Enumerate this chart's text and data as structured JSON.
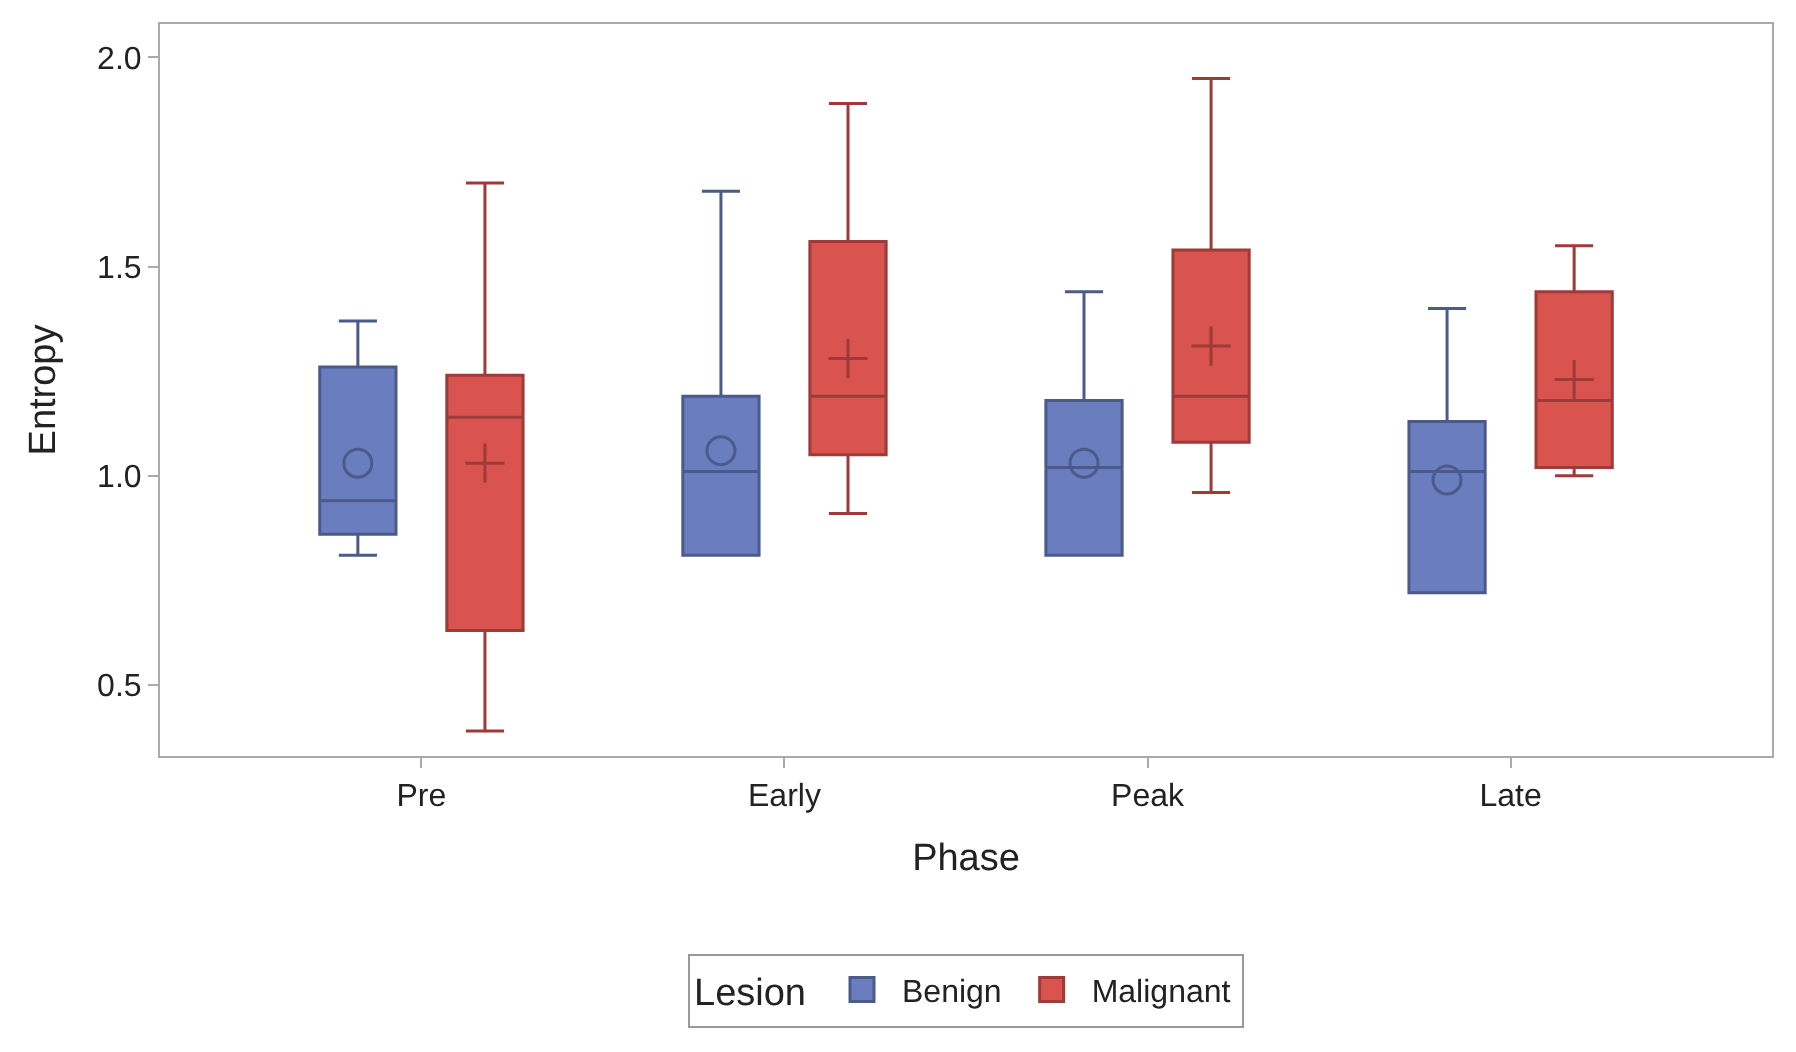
{
  "chart_data": {
    "type": "box",
    "xlabel": "Phase",
    "ylabel": "Entropy",
    "legend_title": "Lesion",
    "legend": "bottom",
    "categories": [
      "Pre",
      "Early",
      "Peak",
      "Late"
    ],
    "ylim": [
      0.33,
      2.08
    ],
    "yticks": [
      {
        "value": 0.5,
        "label": "0.5"
      },
      {
        "value": 1.0,
        "label": "1.0"
      },
      {
        "value": 1.5,
        "label": "1.5"
      },
      {
        "value": 2.0,
        "label": "2.0"
      }
    ],
    "series": [
      {
        "name": "Benign",
        "color": "#6a7dbf",
        "marker": "circle",
        "boxes": [
          {
            "low": 0.81,
            "q1": 0.86,
            "median": 0.94,
            "q3": 1.26,
            "high": 1.37,
            "mean": 1.03
          },
          {
            "low": 0.81,
            "q1": 0.81,
            "median": 1.01,
            "q3": 1.19,
            "high": 1.68,
            "mean": 1.06
          },
          {
            "low": 0.81,
            "q1": 0.81,
            "median": 1.02,
            "q3": 1.18,
            "high": 1.44,
            "mean": 1.03
          },
          {
            "low": 0.72,
            "q1": 0.72,
            "median": 1.01,
            "q3": 1.13,
            "high": 1.4,
            "mean": 0.99
          }
        ]
      },
      {
        "name": "Malignant",
        "color": "#d9534f",
        "marker": "cross",
        "boxes": [
          {
            "low": 0.39,
            "q1": 0.63,
            "median": 1.14,
            "q3": 1.24,
            "high": 1.7,
            "mean": 1.03
          },
          {
            "low": 0.91,
            "q1": 1.05,
            "median": 1.19,
            "q3": 1.56,
            "high": 1.89,
            "mean": 1.28
          },
          {
            "low": 0.96,
            "q1": 1.08,
            "median": 1.19,
            "q3": 1.54,
            "high": 1.95,
            "mean": 1.31
          },
          {
            "low": 1.0,
            "q1": 1.02,
            "median": 1.18,
            "q3": 1.44,
            "high": 1.55,
            "mean": 1.23
          }
        ]
      }
    ]
  }
}
